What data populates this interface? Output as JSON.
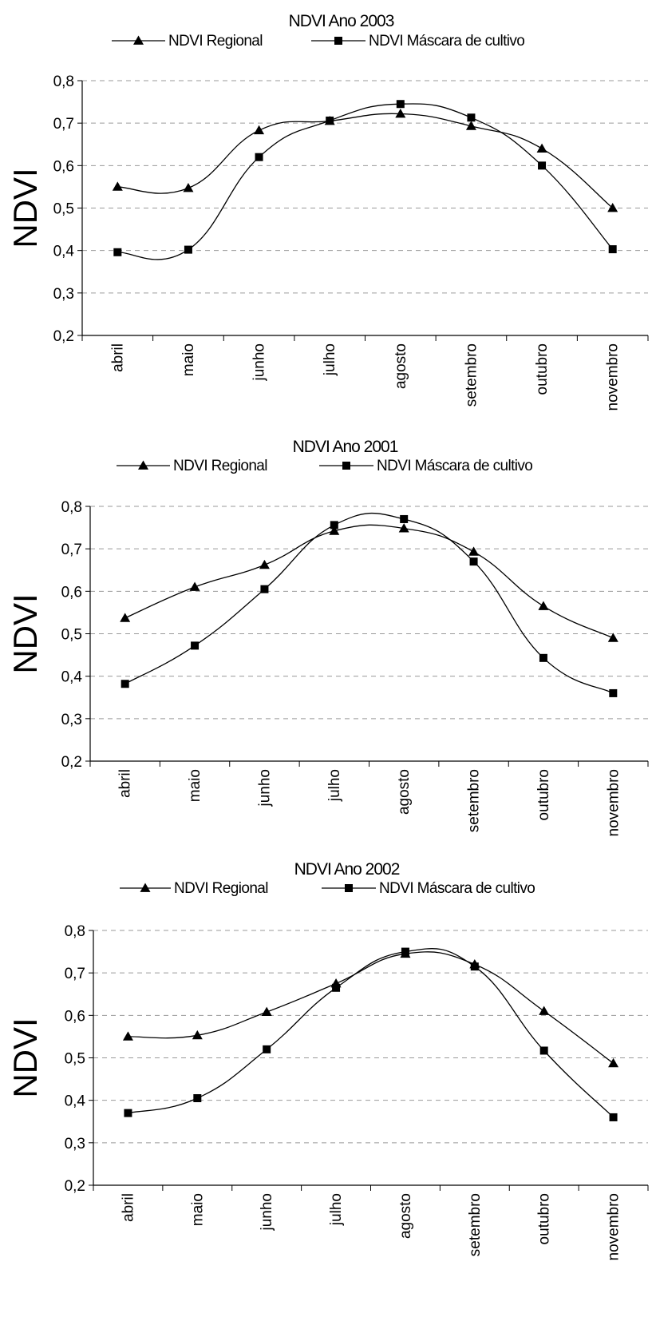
{
  "chart_data": [
    {
      "type": "line",
      "title": "NDVI Ano 2003",
      "ylabel": "NDVI",
      "xlabel": "",
      "ylim": [
        0.2,
        0.8
      ],
      "yticks": [
        "0,2",
        "0,3",
        "0,4",
        "0,5",
        "0,6",
        "0,7",
        "0,8"
      ],
      "grid": true,
      "legend_position": "top",
      "categories": [
        "abril",
        "maio",
        "junho",
        "julho",
        "agosto",
        "setembro",
        "outubro",
        "novembro"
      ],
      "series": [
        {
          "name": "NDVI Regional",
          "marker": "triangle",
          "values": [
            0.55,
            0.547,
            0.683,
            0.705,
            0.722,
            0.693,
            0.64,
            0.5
          ]
        },
        {
          "name": "NDVI Máscara de cultivo",
          "marker": "square",
          "values": [
            0.396,
            0.402,
            0.62,
            0.706,
            0.745,
            0.713,
            0.6,
            0.403
          ]
        }
      ]
    },
    {
      "type": "line",
      "title": "NDVI Ano 2001",
      "ylabel": "NDVI",
      "xlabel": "",
      "ylim": [
        0.2,
        0.8
      ],
      "yticks": [
        "0,2",
        "0,3",
        "0,4",
        "0,5",
        "0,6",
        "0,7",
        "0,8"
      ],
      "grid": true,
      "legend_position": "top",
      "categories": [
        "abril",
        "maio",
        "junho",
        "julho",
        "agosto",
        "setembro",
        "outubro",
        "novembro"
      ],
      "series": [
        {
          "name": "NDVI Regional",
          "marker": "triangle",
          "values": [
            0.537,
            0.61,
            0.662,
            0.742,
            0.748,
            0.693,
            0.565,
            0.49
          ]
        },
        {
          "name": "NDVI Máscara de cultivo",
          "marker": "square",
          "values": [
            0.382,
            0.472,
            0.605,
            0.756,
            0.77,
            0.67,
            0.443,
            0.36
          ]
        }
      ]
    },
    {
      "type": "line",
      "title": "NDVI Ano 2002",
      "ylabel": "NDVI",
      "xlabel": "",
      "ylim": [
        0.2,
        0.8
      ],
      "yticks": [
        "0,2",
        "0,3",
        "0,4",
        "0,5",
        "0,6",
        "0,7",
        "0,8"
      ],
      "grid": true,
      "legend_position": "top",
      "categories": [
        "abril",
        "maio",
        "junho",
        "julho",
        "agosto",
        "setembro",
        "outubro",
        "novembro"
      ],
      "series": [
        {
          "name": "NDVI Regional",
          "marker": "triangle",
          "values": [
            0.55,
            0.553,
            0.608,
            0.675,
            0.745,
            0.72,
            0.61,
            0.487
          ]
        },
        {
          "name": "NDVI Máscara de cultivo",
          "marker": "square",
          "values": [
            0.37,
            0.405,
            0.52,
            0.665,
            0.75,
            0.715,
            0.517,
            0.36
          ]
        }
      ]
    }
  ]
}
